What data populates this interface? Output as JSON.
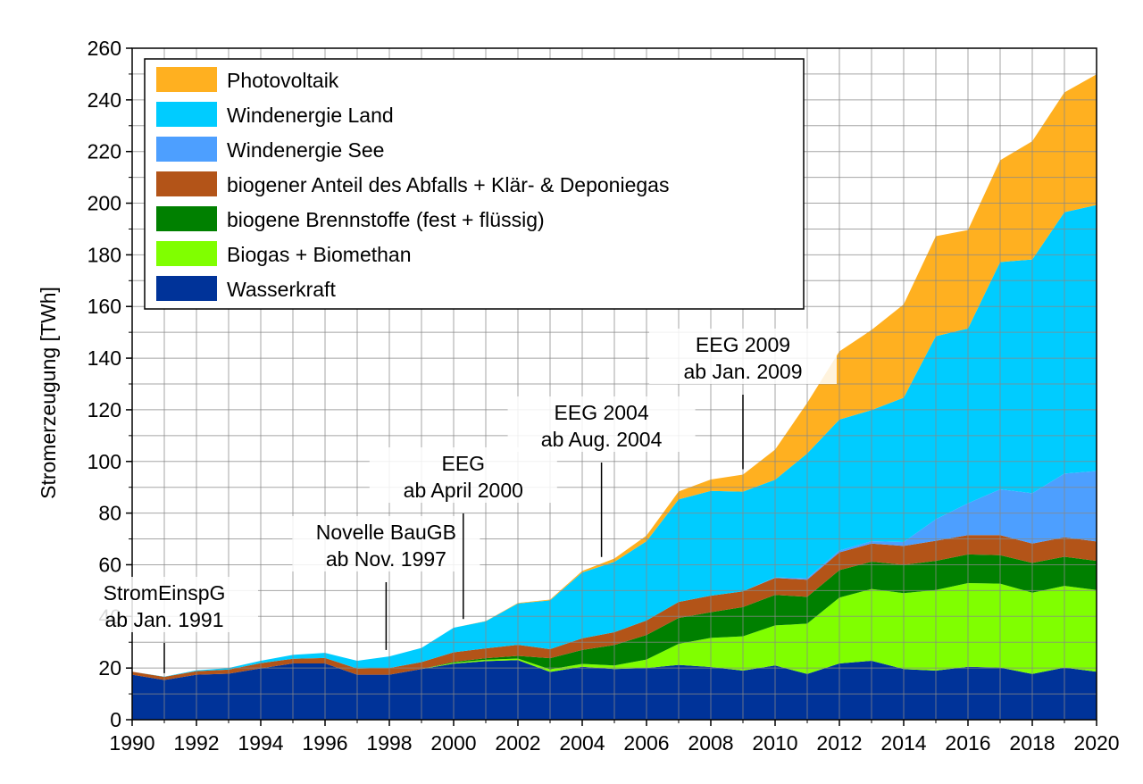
{
  "chart_data": {
    "type": "area",
    "stacked": true,
    "title": "",
    "xlabel": "",
    "ylabel": "Stromerzeugung [TWh]",
    "xlim": [
      1990,
      2020
    ],
    "ylim": [
      0,
      260
    ],
    "grid": true,
    "legend_position": "top-left",
    "x": [
      1990,
      1991,
      1992,
      1993,
      1994,
      1995,
      1996,
      1997,
      1998,
      1999,
      2000,
      2001,
      2002,
      2003,
      2004,
      2005,
      2006,
      2007,
      2008,
      2009,
      2010,
      2011,
      2012,
      2013,
      2014,
      2015,
      2016,
      2017,
      2018,
      2019,
      2020
    ],
    "x_tick_labels": [
      "1990",
      "1992",
      "1994",
      "1996",
      "1998",
      "2000",
      "2002",
      "2004",
      "2006",
      "2008",
      "2010",
      "2012",
      "2014",
      "2016",
      "2018",
      "2020"
    ],
    "y_tick_labels": [
      "0",
      "20",
      "40",
      "60",
      "80",
      "100",
      "120",
      "140",
      "160",
      "180",
      "200",
      "220",
      "240",
      "260"
    ],
    "series": [
      {
        "name": "Wasserkraft",
        "color": "#003399",
        "values": [
          17.4,
          15.4,
          17.4,
          17.8,
          19.9,
          21.8,
          21.8,
          17.4,
          17.4,
          19.6,
          21.7,
          22.7,
          23.1,
          18.5,
          20.5,
          19.6,
          20.0,
          21.2,
          20.4,
          19.0,
          21.0,
          17.7,
          21.8,
          22.8,
          19.6,
          19.0,
          20.5,
          20.2,
          17.7,
          20.2,
          18.6
        ]
      },
      {
        "name": "Biogas + Biomethan",
        "color": "#80ff00",
        "values": [
          0,
          0,
          0,
          0,
          0,
          0,
          0,
          0,
          0,
          0,
          0.4,
          0.5,
          0.6,
          1.0,
          1.1,
          1.4,
          3.3,
          8.2,
          11.3,
          13.3,
          15.5,
          19.5,
          25.5,
          27.8,
          29.4,
          31.2,
          32.4,
          32.5,
          31.5,
          31.6,
          31.6
        ]
      },
      {
        "name": "biogene Brennstoffe (fest + flüssig)",
        "color": "#008000",
        "values": [
          0,
          0,
          0,
          0,
          0,
          0,
          0,
          0,
          0,
          0,
          0.3,
          0.6,
          1.0,
          4.3,
          5.4,
          7.9,
          9.5,
          10.0,
          9.9,
          11.3,
          11.8,
          10.4,
          10.6,
          10.6,
          11.0,
          11.3,
          11.1,
          11.0,
          11.5,
          11.3,
          11.3
        ]
      },
      {
        "name": "biogener Anteil des Abfalls + Klär- & Deponiegas",
        "color": "#b35418",
        "values": [
          1.2,
          1.2,
          1.4,
          1.6,
          2.0,
          1.8,
          2.1,
          2.4,
          2.6,
          2.7,
          3.7,
          3.8,
          4.3,
          3.5,
          4.5,
          5.0,
          5.6,
          6.2,
          6.4,
          6.1,
          6.6,
          6.6,
          6.9,
          7.0,
          7.3,
          7.8,
          7.5,
          7.8,
          7.5,
          7.5,
          7.5
        ]
      },
      {
        "name": "Windenergie See",
        "color": "#4d9fff",
        "values": [
          0,
          0,
          0,
          0,
          0,
          0,
          0,
          0,
          0,
          0,
          0,
          0,
          0,
          0,
          0,
          0,
          0,
          0,
          0,
          0,
          0.2,
          0.6,
          0.7,
          0.9,
          1.5,
          8.3,
          12.3,
          17.7,
          19.5,
          24.7,
          27.3
        ]
      },
      {
        "name": "Windenergie Land",
        "color": "#00ccff",
        "values": [
          0,
          0.1,
          0.3,
          0.6,
          0.9,
          1.5,
          2.0,
          3.0,
          4.5,
          5.5,
          9.5,
          10.5,
          16.0,
          18.9,
          25.5,
          27.2,
          30.7,
          39.7,
          40.6,
          38.6,
          37.8,
          48.3,
          50.7,
          50.8,
          55.9,
          70.9,
          67.7,
          88.0,
          90.5,
          101.2,
          103.0
        ]
      },
      {
        "name": "Photovoltaik",
        "color": "#ffb020",
        "values": [
          0,
          0,
          0,
          0,
          0,
          0,
          0,
          0,
          0,
          0,
          0,
          0.1,
          0.2,
          0.3,
          0.6,
          1.3,
          2.2,
          3.1,
          4.4,
          6.6,
          11.7,
          19.6,
          26.4,
          31.0,
          36.1,
          38.7,
          38.1,
          39.4,
          45.8,
          46.4,
          50.6
        ]
      }
    ],
    "legend_order": [
      "Photovoltaik",
      "Windenergie Land",
      "Windenergie See",
      "biogener Anteil des Abfalls + Klär- & Deponiegas",
      "biogene Brennstoffe (fest + flüssig)",
      "Biogas + Biomethan",
      "Wasserkraft"
    ],
    "annotations": [
      {
        "lines": [
          "StromEinspG",
          "ab Jan. 1991"
        ],
        "x": 1991.0,
        "y": 18
      },
      {
        "lines": [
          "Novelle BauGB",
          "ab Nov. 1997"
        ],
        "x": 1997.9,
        "y": 27
      },
      {
        "lines": [
          "EEG",
          "ab April 2000"
        ],
        "x": 2000.3,
        "y": 39
      },
      {
        "lines": [
          "EEG 2004",
          "ab Aug. 2004"
        ],
        "x": 2004.6,
        "y": 63
      },
      {
        "lines": [
          "EEG 2009",
          "ab Jan. 2009"
        ],
        "x": 2009.0,
        "y": 97
      }
    ]
  }
}
